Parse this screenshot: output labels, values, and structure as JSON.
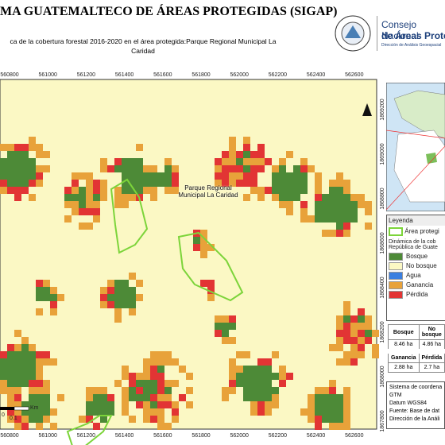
{
  "header": {
    "title": "MA GUATEMALTECO DE ÁREAS PROTEGIDAS  (SIGAP)",
    "subtitle": "ca de la cobertura forestal 2016-2020 en el área protegida:Parque Regional Municipal La Caridad",
    "logo_line1": "Consejo Nacional",
    "logo_line2": "de Áreas Protegi",
    "logo_line3": "Dirección de Análisis Geoespacial"
  },
  "map": {
    "x_ticks": [
      560800,
      561000,
      561200,
      561400,
      561600,
      561800,
      562000,
      562200,
      562400,
      562600
    ],
    "y_ticks": [
      1869200,
      1869000,
      1868800,
      1868600,
      1868400,
      1868200,
      1868000,
      1867800
    ],
    "area_label": "Parque Regional Municipal La Caridad",
    "scale_unit": "Km",
    "scale_start": "0",
    "scale_end": "0.1"
  },
  "legend": {
    "title": "Leyenda",
    "area": "Área protegi",
    "dynamics": "Dinámica de la cob República de Guate",
    "items": [
      "Bosque",
      "No bosque",
      "Agua",
      "Ganancia",
      "Pérdida"
    ]
  },
  "table": {
    "rows": [
      [
        "Bosque",
        "No bosque"
      ],
      [
        "8.46 ha",
        "4.86 ha"
      ],
      [
        "Ganancia",
        "Pérdida"
      ],
      [
        "2.88 ha",
        "2.7 ha"
      ]
    ]
  },
  "info": [
    "Sistema de coordena",
    "GTM",
    "Datum WGS84",
    "Fuente: Base de dat",
    "Dirección de la Análi"
  ]
}
